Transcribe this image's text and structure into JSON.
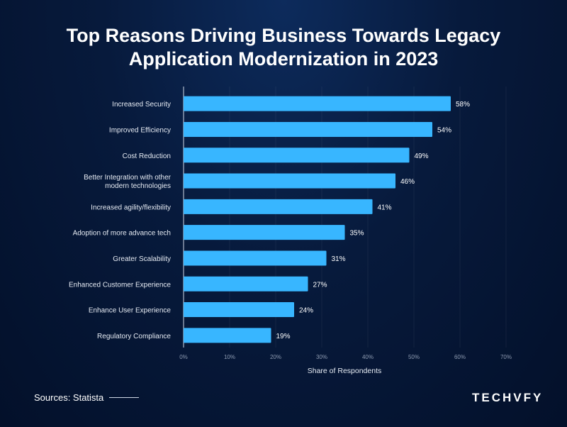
{
  "title_line1": "Top Reasons Driving Business Towards Legacy",
  "title_line2": "Application Modernization in 2023",
  "source": "Sources: Statista",
  "logo": "TECHVFY",
  "colors": {
    "bar": "#38b6ff",
    "background": "#071a3c"
  },
  "chart_data": {
    "type": "bar",
    "orientation": "horizontal",
    "categories": [
      "Increased Security",
      "Improved Efficiency",
      "Cost Reduction",
      "Better Integration with other modern technologies",
      "Increased agility/flexibility",
      "Adoption of more advance tech",
      "Greater Scalability",
      "Enhanced Customer Experience",
      "Enhance User Experience",
      "Regulatory Compliance"
    ],
    "category_lines": [
      [
        "Increased Security"
      ],
      [
        "Improved Efficiency"
      ],
      [
        "Cost Reduction"
      ],
      [
        "Better Integration with other",
        "modern technologies"
      ],
      [
        "Increased agility/flexibility"
      ],
      [
        "Adoption of more advance tech"
      ],
      [
        "Greater Scalability"
      ],
      [
        "Enhanced Customer Experience"
      ],
      [
        "Enhance User Experience"
      ],
      [
        "Regulatory Compliance"
      ]
    ],
    "values": [
      58,
      54,
      49,
      46,
      41,
      35,
      31,
      27,
      24,
      19
    ],
    "data_labels": [
      "58%",
      "54%",
      "49%",
      "46%",
      "41%",
      "35%",
      "31%",
      "27%",
      "24%",
      "19%"
    ],
    "xlabel": "Share of Respondents",
    "xlim": [
      0,
      70
    ],
    "xticks": [
      "0%",
      "10%",
      "20%",
      "30%",
      "40%",
      "50%",
      "60%",
      "70%"
    ],
    "grid": true
  }
}
